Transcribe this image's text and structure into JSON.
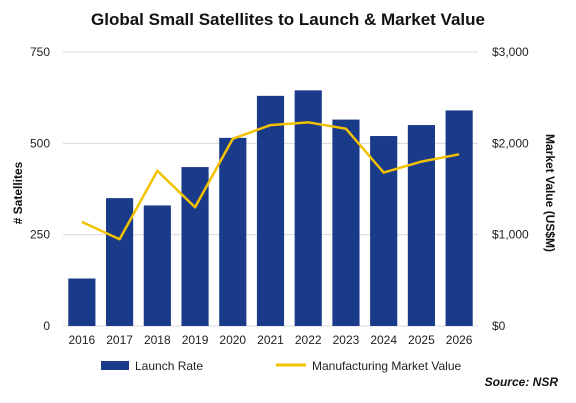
{
  "chart_data": {
    "type": "bar+line",
    "title": "Global Small Satellites to Launch & Market Value",
    "categories": [
      "2016",
      "2017",
      "2018",
      "2019",
      "2020",
      "2021",
      "2022",
      "2023",
      "2024",
      "2025",
      "2026"
    ],
    "series": [
      {
        "name": "Launch Rate",
        "type": "bar",
        "axis": "left",
        "color": "#1a3a8a",
        "values": [
          130,
          350,
          330,
          435,
          515,
          630,
          645,
          565,
          520,
          550,
          590
        ]
      },
      {
        "name": "Manufacturing Market Value",
        "type": "line",
        "axis": "right",
        "color": "#f2c200",
        "values": [
          1140,
          950,
          1700,
          1300,
          2050,
          2200,
          2230,
          2160,
          1680,
          1800,
          1880
        ]
      }
    ],
    "ylabel_left": "# Satellites",
    "ylim_left": [
      0,
      750
    ],
    "yticks_left": [
      "0",
      "250",
      "500",
      "750"
    ],
    "ylabel_right": "Market Value (US$M)",
    "ylim_right": [
      0,
      3000
    ],
    "yticks_right": [
      "$0",
      "$1,000",
      "$2,000",
      "$3,000"
    ],
    "grid": true,
    "legend": "bottom",
    "source": "Source: NSR"
  }
}
